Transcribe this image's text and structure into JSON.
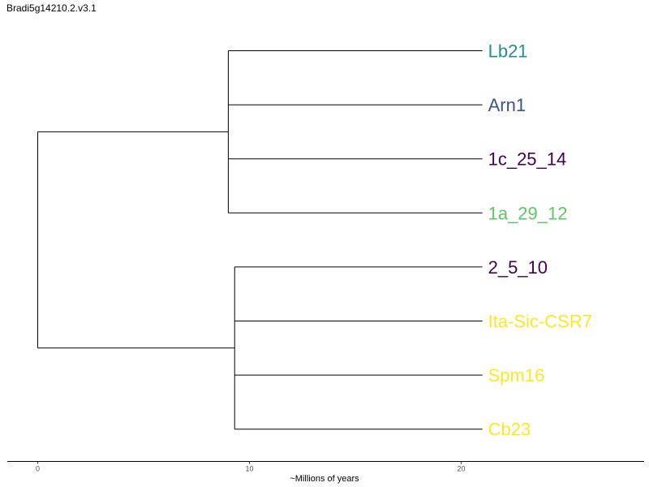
{
  "title": "Bradi5g14210.2.v3.1",
  "tree": {
    "root_age": 0,
    "clades": [
      {
        "node_age": 9.0,
        "tips": [
          {
            "name": "Lb21",
            "color": "#21908C",
            "age": 21
          },
          {
            "name": "Arn1",
            "color": "#3B528B",
            "age": 21
          },
          {
            "name": "1c_25_14",
            "color": "#440154",
            "age": 21
          },
          {
            "name": "1a_29_12",
            "color": "#5DC863",
            "age": 21
          }
        ]
      },
      {
        "node_age": 9.3,
        "tips": [
          {
            "name": "2_5_10",
            "color": "#440154",
            "age": 21
          },
          {
            "name": "Ita-Sic-CSR7",
            "color": "#FDE725",
            "age": 21
          },
          {
            "name": "Spm16",
            "color": "#FDE725",
            "age": 21
          },
          {
            "name": "Cb23",
            "color": "#FDE725",
            "age": 21
          }
        ]
      }
    ]
  },
  "axis": {
    "title": "~Millions of years",
    "ticks": [
      0,
      10,
      20
    ]
  }
}
